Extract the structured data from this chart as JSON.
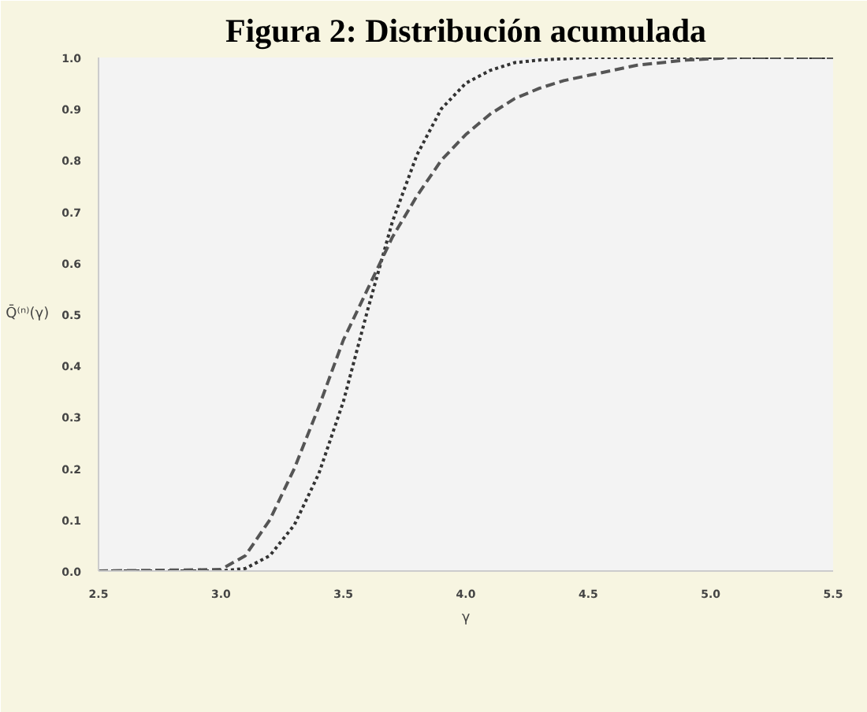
{
  "chart_data": {
    "type": "line",
    "title": "Figura 2: Distribución acumulada",
    "xlabel": "γ",
    "ylabel": "Q̄⁽ⁿ⁾(γ)",
    "xlim": [
      2.5,
      5.5
    ],
    "xticks": [
      {
        "value": 2.5,
        "label": "2.5"
      },
      {
        "value": 3.0,
        "label": "3.0"
      },
      {
        "value": 3.5,
        "label": "3.5"
      },
      {
        "value": 4.0,
        "label": "4.0"
      },
      {
        "value": 4.5,
        "label": "4.5"
      },
      {
        "value": 5.0,
        "label": "5.0"
      },
      {
        "value": 5.5,
        "label": "5.5"
      }
    ],
    "ylim": [
      0,
      1
    ],
    "yticks": [
      {
        "value": 0,
        "label": "0.0"
      },
      {
        "value": 0.1,
        "label": "0.1"
      },
      {
        "value": 0.2,
        "label": "0.2"
      },
      {
        "value": 0.3,
        "label": "0.3"
      },
      {
        "value": 0.4,
        "label": "0.4"
      },
      {
        "value": 0.5,
        "label": "0.5"
      },
      {
        "value": 0.6,
        "label": "0.6"
      },
      {
        "value": 0.7,
        "label": "0.7"
      },
      {
        "value": 0.8,
        "label": "0.8"
      },
      {
        "value": 0.9,
        "label": "0.9"
      },
      {
        "value": 1.0,
        "label": "1.0"
      }
    ],
    "grid": false,
    "series": [
      {
        "color": "#333333",
        "line_style": "dotted",
        "x": [
          2.5,
          3.0,
          3.1,
          3.2,
          3.3,
          3.4,
          3.5,
          3.6,
          3.7,
          3.8,
          3.9,
          4.0,
          4.1,
          4.2,
          4.3,
          4.5,
          5.0,
          5.5
        ],
        "values": [
          0,
          0,
          0.005,
          0.03,
          0.09,
          0.19,
          0.33,
          0.51,
          0.68,
          0.81,
          0.9,
          0.95,
          0.975,
          0.99,
          0.995,
          1,
          1,
          1
        ]
      },
      {
        "color": "#555555",
        "line_style": "dashed",
        "x": [
          2.5,
          3.0,
          3.1,
          3.2,
          3.3,
          3.4,
          3.5,
          3.6,
          3.7,
          3.8,
          3.9,
          4.0,
          4.1,
          4.2,
          4.3,
          4.4,
          4.5,
          4.7,
          4.9,
          5.1,
          5.5
        ],
        "values": [
          0,
          0.003,
          0.03,
          0.1,
          0.2,
          0.32,
          0.45,
          0.55,
          0.65,
          0.73,
          0.8,
          0.85,
          0.89,
          0.92,
          0.94,
          0.955,
          0.965,
          0.985,
          0.995,
          1,
          1
        ]
      }
    ]
  }
}
